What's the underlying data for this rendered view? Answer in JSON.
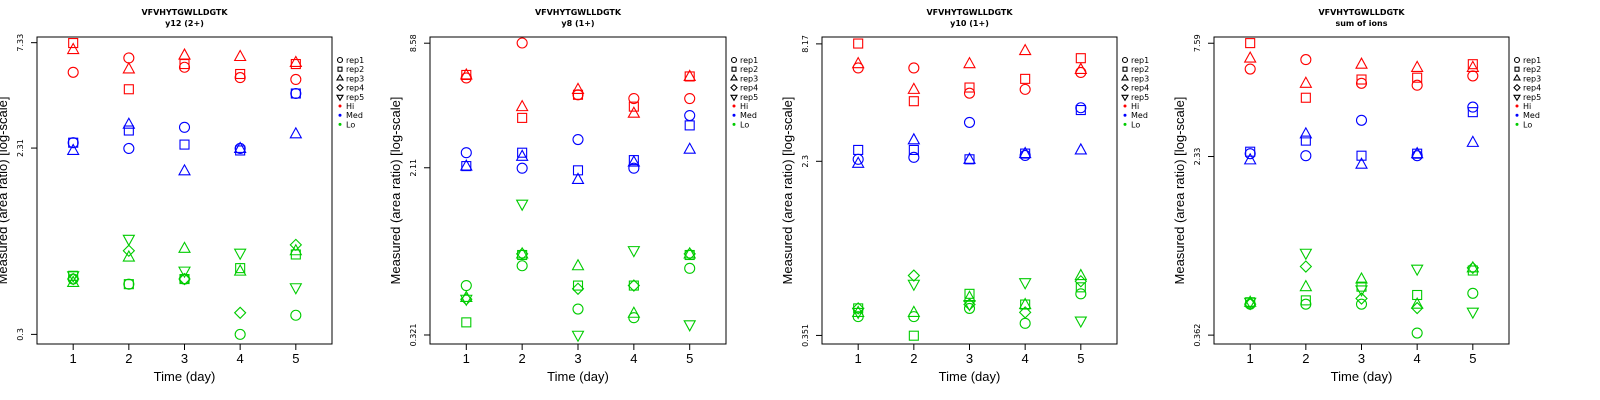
{
  "chart_data": [
    {
      "type": "scatter",
      "title": "VFVHYTGWLLDGTK",
      "subtitle": "y12 (2+)",
      "xlabel": "Time (day)",
      "ylabel": "Measured (area ratio) [log-scale]",
      "x_ticks": [
        "1",
        "2",
        "3",
        "4",
        "5"
      ],
      "y_ticks": [
        {
          "value": 7.33,
          "label": "7.33"
        },
        {
          "value": 2.31,
          "label": "2.31"
        },
        {
          "value": 0.3,
          "label": "0.3"
        }
      ],
      "ylim": [
        0.27,
        7.8
      ],
      "y_scale": "log",
      "legend_position": "right",
      "legend": [
        {
          "label": "rep1",
          "marker": "circle"
        },
        {
          "label": "rep2",
          "marker": "square"
        },
        {
          "label": "rep3",
          "marker": "triangle-up"
        },
        {
          "label": "rep4",
          "marker": "diamond"
        },
        {
          "label": "rep5",
          "marker": "triangle-down"
        },
        {
          "label": "Hi",
          "color": "#ff0000"
        },
        {
          "label": "Med",
          "color": "#0000ff"
        },
        {
          "label": "Lo",
          "color": "#00cc00"
        }
      ],
      "series": [
        {
          "group": "Hi",
          "color": "#ff0000",
          "rep1": [
            5.3,
            6.2,
            5.6,
            5.0,
            4.9
          ],
          "rep2": [
            7.3,
            4.4,
            5.8,
            5.2,
            5.8
          ],
          "rep3": [
            6.8,
            5.5,
            6.4,
            6.3,
            5.9
          ]
        },
        {
          "group": "Med",
          "color": "#0000ff",
          "rep1": [
            2.45,
            2.3,
            2.9,
            2.3,
            4.2
          ],
          "rep2": [
            2.45,
            2.8,
            2.4,
            2.25,
            4.2
          ],
          "rep3": [
            2.25,
            3.0,
            1.8,
            2.3,
            2.7
          ]
        },
        {
          "group": "Lo",
          "color": "#00cc00",
          "rep1": [
            0.55,
            0.52,
            0.55,
            0.3,
            0.37
          ],
          "rep2": [
            0.57,
            0.52,
            0.55,
            0.62,
            0.72
          ],
          "rep3": [
            0.53,
            0.7,
            0.77,
            0.6,
            0.75
          ],
          "rep4": [
            0.55,
            0.75,
            0.55,
            0.38,
            0.8
          ],
          "rep5": [
            0.57,
            0.85,
            0.6,
            0.73,
            0.5
          ]
        }
      ]
    },
    {
      "type": "scatter",
      "title": "VFVHYTGWLLDGTK",
      "subtitle": "y8 (1+)",
      "xlabel": "Time (day)",
      "ylabel": "Measured (area ratio) [log-scale]",
      "x_ticks": [
        "1",
        "2",
        "3",
        "4",
        "5"
      ],
      "y_ticks": [
        {
          "value": 8.58,
          "label": "8.58"
        },
        {
          "value": 2.11,
          "label": "2.11"
        },
        {
          "value": 0.321,
          "label": "0.321"
        }
      ],
      "ylim": [
        0.29,
        9.2
      ],
      "y_scale": "log",
      "legend_position": "right",
      "legend": [
        {
          "label": "rep1",
          "marker": "circle"
        },
        {
          "label": "rep2",
          "marker": "square"
        },
        {
          "label": "rep3",
          "marker": "triangle-up"
        },
        {
          "label": "rep4",
          "marker": "diamond"
        },
        {
          "label": "rep5",
          "marker": "triangle-down"
        },
        {
          "label": "Hi",
          "color": "#ff0000"
        },
        {
          "label": "Med",
          "color": "#0000ff"
        },
        {
          "label": "Lo",
          "color": "#00cc00"
        }
      ],
      "series": [
        {
          "group": "Hi",
          "color": "#ff0000",
          "rep1": [
            5.8,
            8.6,
            4.8,
            4.6,
            4.6
          ],
          "rep2": [
            6.0,
            3.7,
            4.8,
            4.2,
            5.9
          ],
          "rep3": [
            6.0,
            4.2,
            5.1,
            3.9,
            5.9
          ]
        },
        {
          "group": "Med",
          "color": "#0000ff",
          "rep1": [
            2.5,
            2.1,
            2.9,
            2.1,
            3.8
          ],
          "rep2": [
            2.15,
            2.5,
            2.05,
            2.3,
            3.4
          ],
          "rep3": [
            2.15,
            2.4,
            1.85,
            2.25,
            2.6
          ]
        },
        {
          "group": "Lo",
          "color": "#00cc00",
          "rep1": [
            0.56,
            0.7,
            0.43,
            0.39,
            0.68
          ],
          "rep2": [
            0.37,
            0.79,
            0.56,
            0.56,
            0.79
          ],
          "rep3": [
            0.49,
            0.8,
            0.7,
            0.41,
            0.8
          ],
          "rep4": [
            0.48,
            0.8,
            0.54,
            0.56,
            0.8
          ],
          "rep5": [
            0.48,
            1.4,
            0.32,
            0.83,
            0.36
          ]
        }
      ]
    },
    {
      "type": "scatter",
      "title": "VFVHYTGWLLDGTK",
      "subtitle": "y10 (1+)",
      "xlabel": "Time (day)",
      "ylabel": "Measured (area ratio) [log-scale]",
      "x_ticks": [
        "1",
        "2",
        "3",
        "4",
        "5"
      ],
      "y_ticks": [
        {
          "value": 8.17,
          "label": "8.17"
        },
        {
          "value": 2.3,
          "label": "2.3"
        },
        {
          "value": 0.351,
          "label": "0.351"
        }
      ],
      "ylim": [
        0.32,
        8.8
      ],
      "y_scale": "log",
      "legend_position": "right",
      "legend": [
        {
          "label": "rep1",
          "marker": "circle"
        },
        {
          "label": "rep2",
          "marker": "square"
        },
        {
          "label": "rep3",
          "marker": "triangle-up"
        },
        {
          "label": "rep4",
          "marker": "diamond"
        },
        {
          "label": "rep5",
          "marker": "triangle-down"
        },
        {
          "label": "Hi",
          "color": "#ff0000"
        },
        {
          "label": "Med",
          "color": "#0000ff"
        },
        {
          "label": "Lo",
          "color": "#00cc00"
        }
      ],
      "series": [
        {
          "group": "Hi",
          "color": "#ff0000",
          "rep1": [
            6.3,
            6.3,
            4.8,
            5.0,
            6.0
          ],
          "rep2": [
            8.2,
            4.4,
            5.1,
            5.6,
            7.0
          ],
          "rep3": [
            6.6,
            5.0,
            6.6,
            7.6,
            6.2
          ]
        },
        {
          "group": "Med",
          "color": "#0000ff",
          "rep1": [
            2.35,
            2.4,
            3.5,
            2.45,
            4.1
          ],
          "rep2": [
            2.6,
            2.6,
            2.35,
            2.5,
            4.0
          ],
          "rep3": [
            2.25,
            2.9,
            2.35,
            2.5,
            2.6
          ]
        },
        {
          "group": "Lo",
          "color": "#00cc00",
          "rep1": [
            0.43,
            0.43,
            0.47,
            0.4,
            0.55
          ],
          "rep2": [
            0.47,
            0.35,
            0.55,
            0.49,
            0.59
          ],
          "rep3": [
            0.45,
            0.45,
            0.53,
            0.49,
            0.67
          ],
          "rep4": [
            0.47,
            0.67,
            0.49,
            0.45,
            0.63
          ],
          "rep5": [
            0.45,
            0.61,
            0.49,
            0.62,
            0.41
          ]
        }
      ]
    },
    {
      "type": "scatter",
      "title": "VFVHYTGWLLDGTK",
      "subtitle": "sum of ions",
      "xlabel": "Time (day)",
      "ylabel": "Measured (area ratio) [log-scale]",
      "x_ticks": [
        "1",
        "2",
        "3",
        "4",
        "5"
      ],
      "y_ticks": [
        {
          "value": 7.59,
          "label": "7.59"
        },
        {
          "value": 2.33,
          "label": "2.33"
        },
        {
          "value": 0.362,
          "label": "0.362"
        }
      ],
      "ylim": [
        0.33,
        8.1
      ],
      "y_scale": "log",
      "legend_position": "right",
      "legend": [
        {
          "label": "rep1",
          "marker": "circle"
        },
        {
          "label": "rep2",
          "marker": "square"
        },
        {
          "label": "rep3",
          "marker": "triangle-up"
        },
        {
          "label": "rep4",
          "marker": "diamond"
        },
        {
          "label": "rep5",
          "marker": "triangle-down"
        },
        {
          "label": "Hi",
          "color": "#ff0000"
        },
        {
          "label": "Med",
          "color": "#0000ff"
        },
        {
          "label": "Lo",
          "color": "#00cc00"
        }
      ],
      "series": [
        {
          "group": "Hi",
          "color": "#ff0000",
          "rep1": [
            5.8,
            6.4,
            5.0,
            4.9,
            5.4
          ],
          "rep2": [
            7.6,
            4.3,
            5.2,
            5.3,
            6.1
          ],
          "rep3": [
            6.5,
            5.0,
            6.1,
            5.9,
            5.9
          ]
        },
        {
          "group": "Med",
          "color": "#0000ff",
          "rep1": [
            2.4,
            2.35,
            3.4,
            2.35,
            3.9
          ],
          "rep2": [
            2.45,
            2.75,
            2.35,
            2.4,
            3.7
          ],
          "rep3": [
            2.25,
            2.95,
            2.15,
            2.4,
            2.7
          ]
        },
        {
          "group": "Lo",
          "color": "#00cc00",
          "rep1": [
            0.5,
            0.5,
            0.5,
            0.37,
            0.56
          ],
          "rep2": [
            0.51,
            0.52,
            0.6,
            0.55,
            0.71
          ],
          "rep3": [
            0.51,
            0.6,
            0.65,
            0.5,
            0.73
          ],
          "rep4": [
            0.5,
            0.74,
            0.53,
            0.48,
            0.73
          ],
          "rep5": [
            0.51,
            0.85,
            0.58,
            0.72,
            0.46
          ]
        }
      ]
    }
  ]
}
